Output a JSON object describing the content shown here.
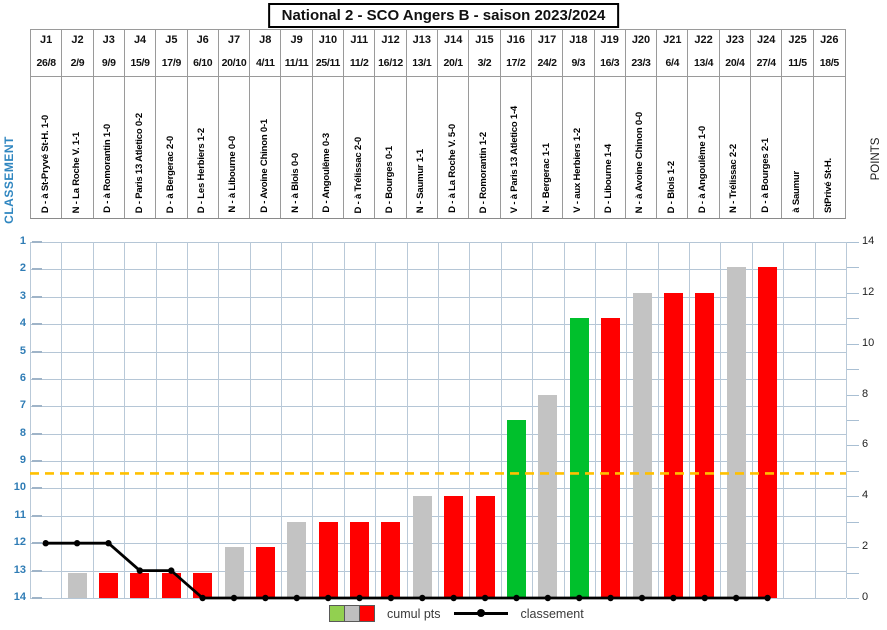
{
  "title": "National 2 - SCO Angers B - saison 2023/2024",
  "legend": {
    "bar_label": "cumul pts",
    "line_label": "classement",
    "swatches": [
      "#92d050",
      "#bfbfbf",
      "#ff0000"
    ]
  },
  "chart_data": {
    "type": "bar+line",
    "categories": [
      "J1",
      "J2",
      "J3",
      "J4",
      "J5",
      "J6",
      "J7",
      "J8",
      "J9",
      "J10",
      "J11",
      "J12",
      "J13",
      "J14",
      "J15",
      "J16",
      "J17",
      "J18",
      "J19",
      "J20",
      "J21",
      "J22",
      "J23",
      "J24",
      "J25",
      "J26"
    ],
    "dates": [
      "26/8",
      "2/9",
      "9/9",
      "15/9",
      "17/9",
      "6/10",
      "20/10",
      "4/11",
      "11/11",
      "25/11",
      "11/2",
      "16/12",
      "13/1",
      "20/1",
      "3/2",
      "17/2",
      "24/2",
      "9/3",
      "16/3",
      "23/3",
      "6/4",
      "13/4",
      "20/4",
      "27/4",
      "11/5",
      "18/5"
    ],
    "match_labels": [
      "D - à St-Pryvé St-H. 1-0",
      "N - La Roche V. 1-1",
      "D - à Romorantin 1-0",
      "D - Paris 13 Atletico 0-2",
      "D - à Bergerac 2-0",
      "D - Les Herbiers 1-2",
      "N - à Libourne 0-0",
      "D - Avoine Chinon 0-1",
      "N - à Blois 0-0",
      "D - Angoulême 0-3",
      "D - à Trélissac 2-0",
      "D - Bourges 0-1",
      "N - Saumur 1-1",
      "D - à La Roche V. 5-0",
      "D - Romorantin 1-2",
      "V - à Paris 13 Atletico 1-4",
      "N - Bergerac 1-1",
      "V - aux Herbiers 1-2",
      "D - Libourne 1-4",
      "N - à Avoine Chinon 0-0",
      "D - Blois 1-2",
      "D - à Angoulême 1-0",
      "N - Trélissac 2-2",
      "D - à Bourges 2-1",
      "à Saumur",
      "StPrivé St-H."
    ],
    "results": [
      "D",
      "N",
      "D",
      "D",
      "D",
      "D",
      "N",
      "D",
      "N",
      "D",
      "D",
      "D",
      "N",
      "D",
      "D",
      "V",
      "N",
      "V",
      "D",
      "N",
      "D",
      "D",
      "N",
      "D",
      null,
      null
    ],
    "result_colors": {
      "V": "#00c02c",
      "N": "#c3c3c3",
      "D": "#ff0000"
    },
    "series": [
      {
        "name": "cumul pts",
        "type": "bar",
        "values": [
          0,
          1,
          1,
          1,
          1,
          1,
          2,
          2,
          3,
          3,
          3,
          3,
          4,
          4,
          4,
          7,
          8,
          11,
          11,
          12,
          12,
          12,
          13,
          13,
          null,
          null
        ]
      },
      {
        "name": "classement",
        "type": "line",
        "color": "#000000",
        "values": [
          12,
          12,
          12,
          13,
          13,
          14,
          14,
          14,
          14,
          14,
          14,
          14,
          14,
          14,
          14,
          14,
          14,
          14,
          14,
          14,
          14,
          14,
          14,
          14,
          null,
          null
        ]
      }
    ],
    "left_axis": {
      "label": "CLASSEMENT",
      "min": 1,
      "max": 14,
      "inverted": true,
      "ticks": [
        1,
        2,
        3,
        4,
        5,
        6,
        7,
        8,
        9,
        10,
        11,
        12,
        13,
        14
      ],
      "color": "#2f7cb5"
    },
    "right_axis": {
      "label": "POINTS",
      "min": 0,
      "max": 14,
      "minor_step": 1,
      "ticks": [
        0,
        2,
        4,
        6,
        8,
        10,
        12,
        14
      ],
      "color": "#222222"
    },
    "reference_line": {
      "axis": "points",
      "value": 4.9,
      "color": "#ffc000",
      "style": "dashed"
    },
    "grid": {
      "horizontal": "every classement rank 1-14",
      "vertical": "every matchday column",
      "color": "#b5c6d6"
    }
  }
}
